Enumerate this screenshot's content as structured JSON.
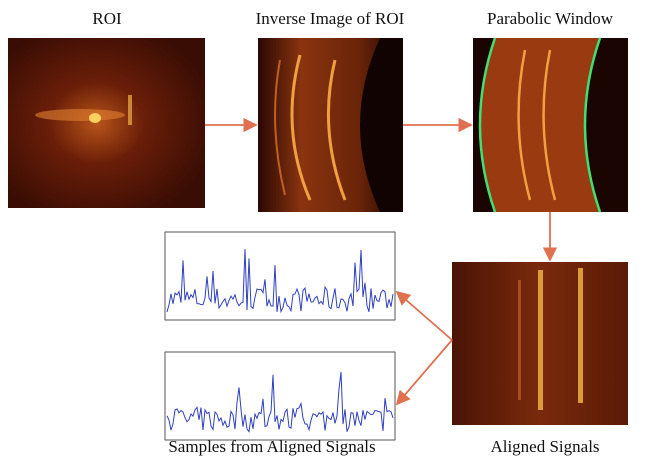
{
  "panels": [
    {
      "label": "ROI"
    },
    {
      "label": "Inverse Image of ROI"
    },
    {
      "label": "Parabolic Window"
    },
    {
      "label": "Aligned Signals"
    },
    {
      "label": "Samples from Aligned Signals"
    }
  ]
}
